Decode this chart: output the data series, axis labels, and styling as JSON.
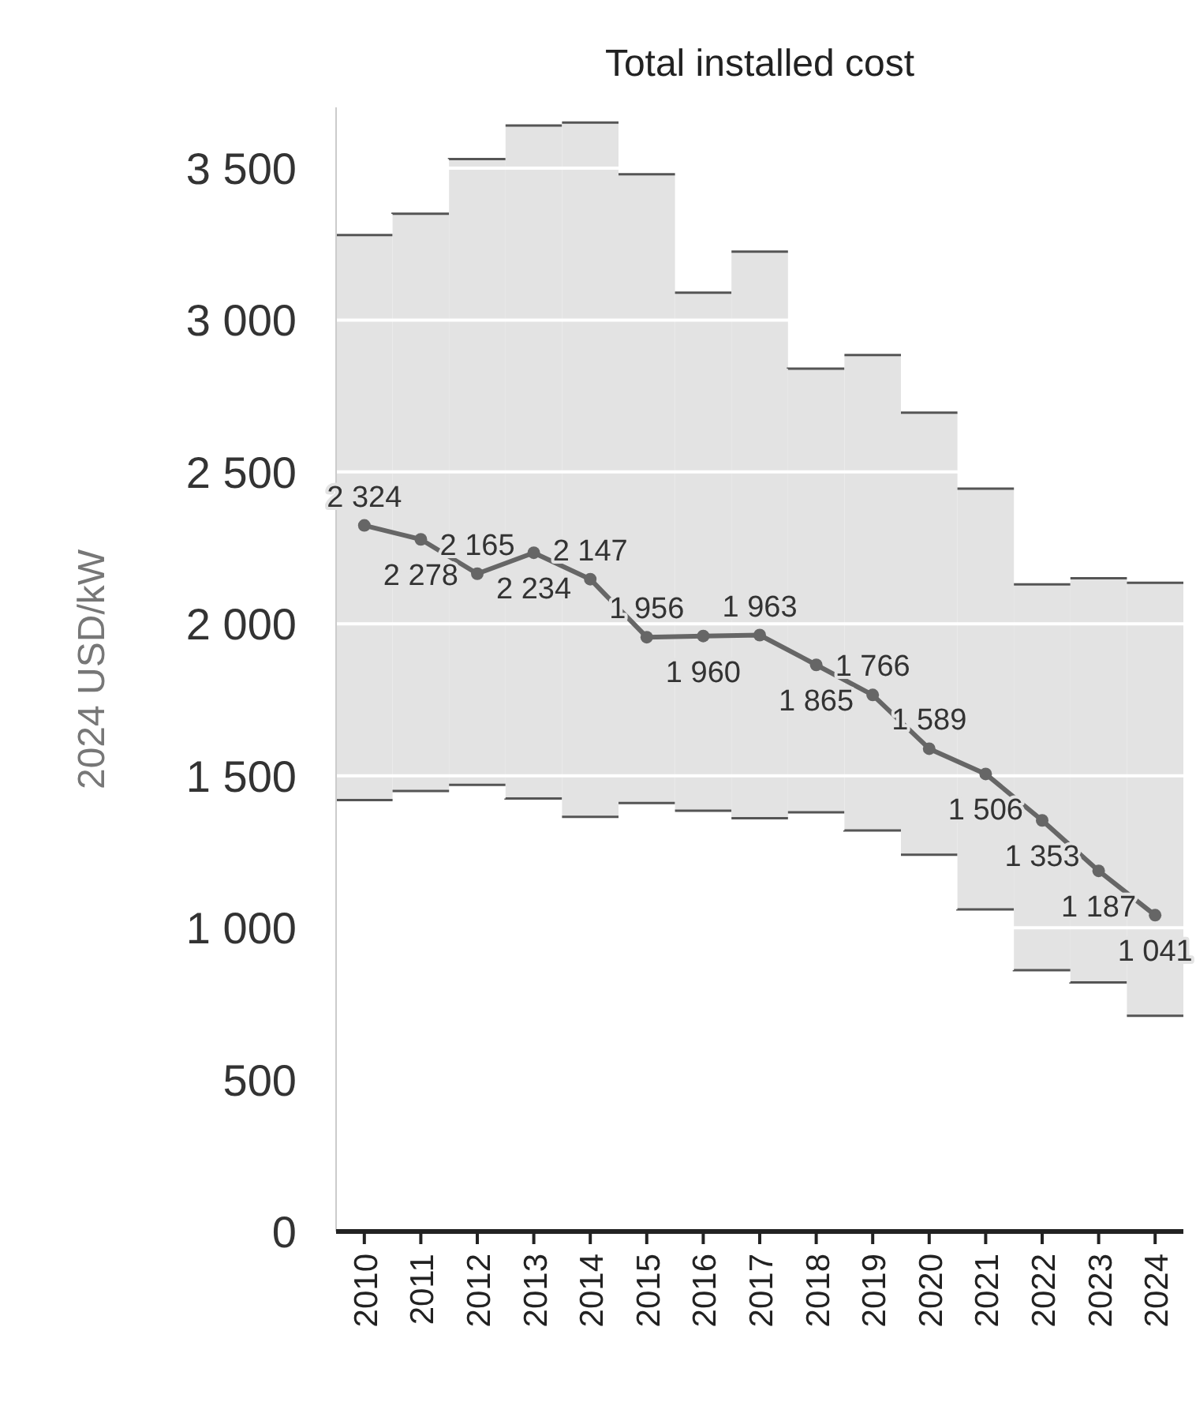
{
  "chart_data": {
    "type": "line",
    "title": "Total installed cost",
    "ylabel": "2024 USD/kW",
    "categories": [
      "2010",
      "2011",
      "2012",
      "2013",
      "2014",
      "2015",
      "2016",
      "2017",
      "2018",
      "2019",
      "2020",
      "2021",
      "2022",
      "2023",
      "2024"
    ],
    "series": [
      {
        "type": "bar",
        "color": "#e3e3e3",
        "base": [
          1420,
          1450,
          1470,
          1425,
          1365,
          1410,
          1385,
          1360,
          1380,
          1320,
          1240,
          1060,
          860,
          820,
          710
        ],
        "values": [
          1860,
          1900,
          2060,
          2215,
          2285,
          2070,
          1705,
          1865,
          1460,
          1565,
          1455,
          1385,
          1270,
          1330,
          1425
        ]
      },
      {
        "color": "#666666",
        "values": [
          2324,
          2278,
          2165,
          2234,
          2147,
          1956,
          1960,
          1963,
          1865,
          1766,
          1589,
          1506,
          1353,
          1187,
          1041
        ],
        "value_labels": [
          "2 324",
          "2 278",
          "2 165",
          "2 234",
          "2 147",
          "1 956",
          "1 960",
          "1 963",
          "1 865",
          "1 766",
          "1 589",
          "1 506",
          "1 353",
          "1 187",
          "1 041"
        ]
      }
    ],
    "ylim": [
      0,
      3700
    ],
    "yticks": [
      0,
      500,
      {
        "value": 1000,
        "label": "1 000"
      },
      {
        "value": 1500,
        "label": "1 500"
      },
      {
        "value": 2000,
        "label": "2 000"
      },
      {
        "value": 2500,
        "label": "2 500"
      },
      {
        "value": 3000,
        "label": "3 000"
      },
      {
        "value": 3500,
        "label": "3 500"
      }
    ],
    "grid": "y",
    "marker": "circle",
    "line_style": "solid"
  }
}
